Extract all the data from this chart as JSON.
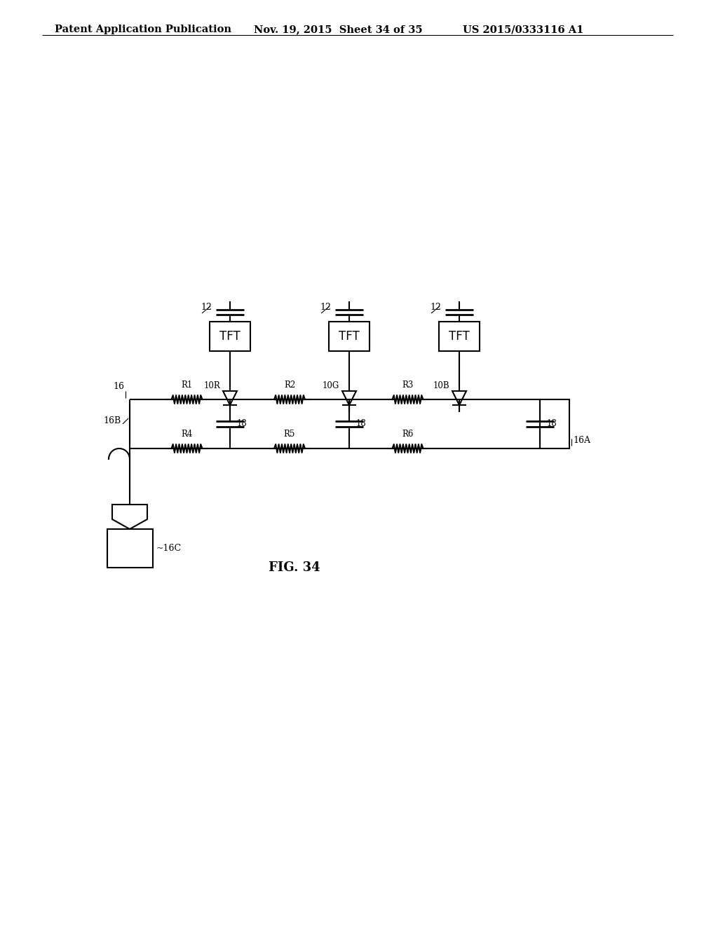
{
  "title_left": "Patent Application Publication",
  "title_mid": "Nov. 19, 2015  Sheet 34 of 35",
  "title_right": "US 2015/0333116 A1",
  "fig_label": "FIG. 34",
  "bg_color": "#ffffff",
  "line_color": "#000000",
  "header_fontsize": 10.5,
  "fig_label_fontsize": 13
}
